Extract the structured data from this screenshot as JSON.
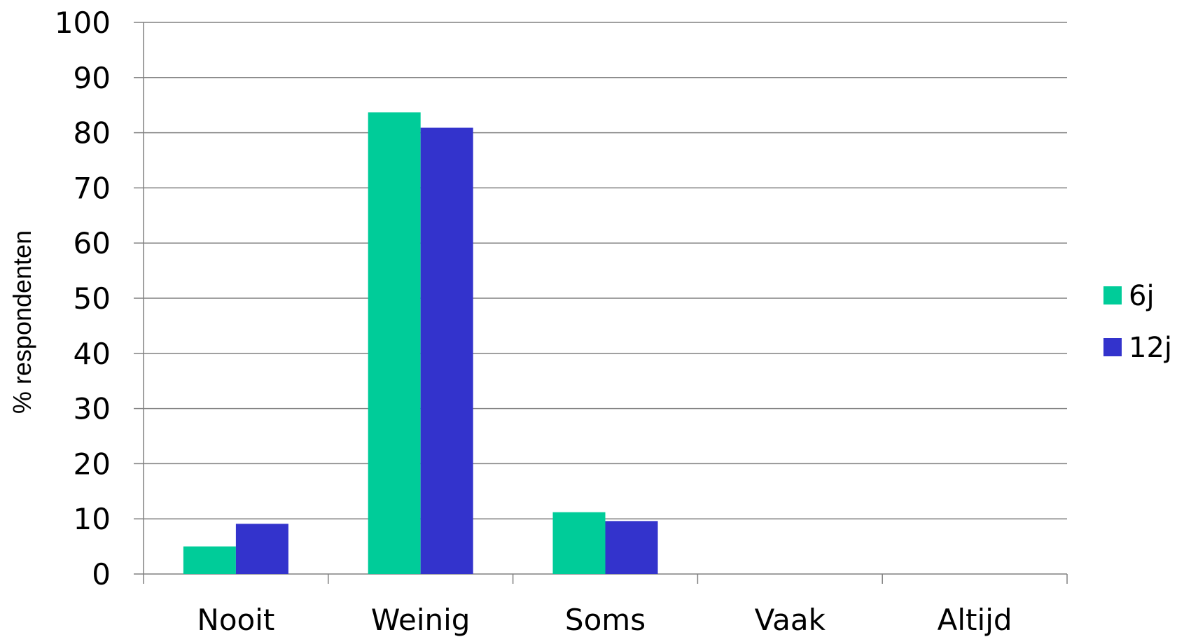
{
  "chart_data": {
    "type": "bar",
    "title": "",
    "xlabel": "",
    "ylabel": "% respondenten",
    "ylim": [
      0,
      100
    ],
    "yticks": [
      0,
      10,
      20,
      30,
      40,
      50,
      60,
      70,
      80,
      90,
      100
    ],
    "grid": true,
    "legend_position": "right",
    "categories": [
      "Nooit",
      "Weinig",
      "Soms",
      "Vaak",
      "Altijd"
    ],
    "series": [
      {
        "name": "6j",
        "color": "#00cc99",
        "values": [
          5,
          83.7,
          11.2,
          0,
          0
        ]
      },
      {
        "name": "12j",
        "color": "#3333cc",
        "values": [
          9.1,
          80.9,
          9.6,
          0,
          0
        ]
      }
    ]
  }
}
